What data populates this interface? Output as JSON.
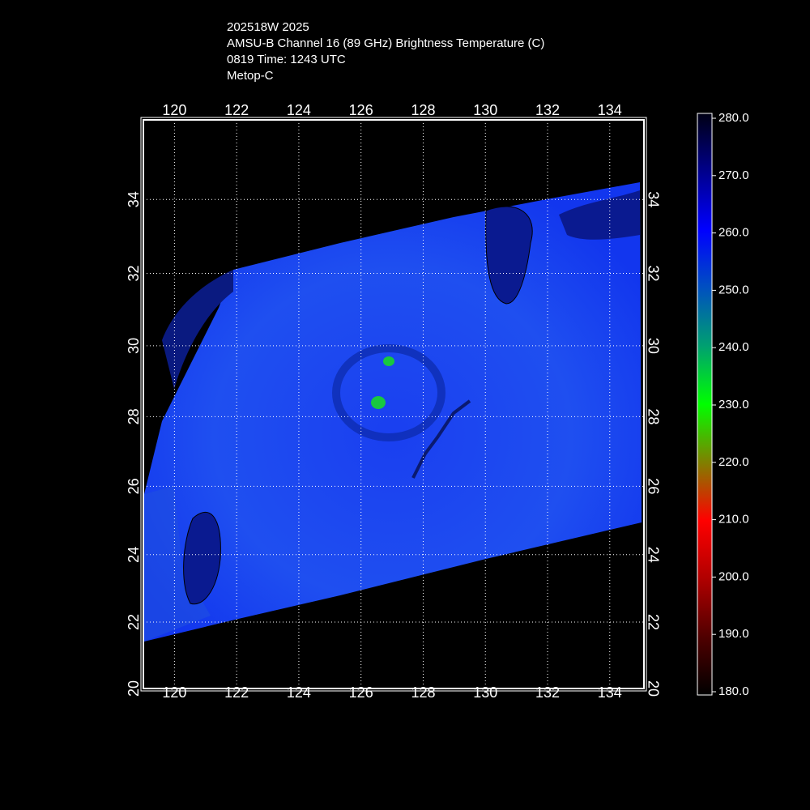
{
  "header": {
    "lines": [
      "202518W 2025",
      "AMSU-B Channel 16 (89 GHz) Brightness Temperature (C)",
      "0819 Time: 1243 UTC",
      "Metop-C"
    ]
  },
  "map": {
    "lon_range": [
      119,
      135.1
    ],
    "lat_range": [
      20,
      36.1
    ],
    "lon_ticks": [
      120,
      122,
      124,
      126,
      128,
      130,
      132,
      134
    ],
    "lat_ticks": [
      20,
      22,
      24,
      26,
      28,
      30,
      32,
      34
    ]
  },
  "colorbar": {
    "range": [
      180,
      280
    ],
    "ticks": [
      {
        "value": 280,
        "label": "280.0"
      },
      {
        "value": 270,
        "label": "270.0"
      },
      {
        "value": 260,
        "label": "260.0"
      },
      {
        "value": 250,
        "label": "250.0"
      },
      {
        "value": 240,
        "label": "240.0"
      },
      {
        "value": 230,
        "label": "230.0"
      },
      {
        "value": 220,
        "label": "220.0"
      },
      {
        "value": 210,
        "label": "210.0"
      },
      {
        "value": 200,
        "label": "200.0"
      },
      {
        "value": 190,
        "label": "190.0"
      },
      {
        "value": 180,
        "label": "180.0"
      }
    ]
  }
}
